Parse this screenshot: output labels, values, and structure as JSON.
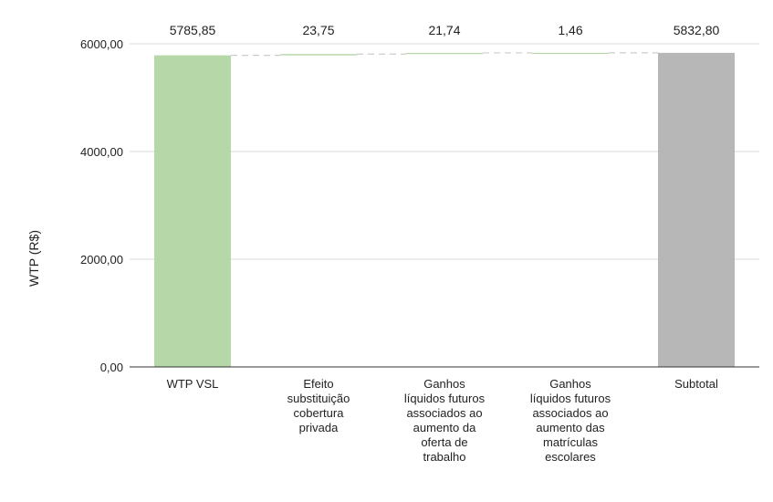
{
  "chart_data": {
    "type": "bar",
    "subtype": "waterfall",
    "ylabel": "WTP (R$)",
    "xlabel": "",
    "ylim": [
      0,
      6000
    ],
    "yticks": [
      0,
      2000,
      4000,
      6000
    ],
    "ytick_labels": [
      "0,00",
      "2000,00",
      "4000,00",
      "6000,00"
    ],
    "grid": true,
    "legend": "none",
    "categories": [
      [
        "WTP VSL"
      ],
      [
        "Efeito",
        "substituição",
        "cobertura",
        "privada"
      ],
      [
        "Ganhos",
        "líquidos futuros",
        "associados ao",
        "aumento da",
        "oferta de",
        "trabalho"
      ],
      [
        "Ganhos",
        "líquidos futuros",
        "associados ao",
        "aumento das",
        "matrículas",
        "escolares"
      ],
      [
        "Subtotal"
      ]
    ],
    "values": [
      5785.85,
      23.75,
      21.74,
      1.46,
      5832.8
    ],
    "bar_kind": [
      "total",
      "increase",
      "increase",
      "increase",
      "total"
    ],
    "value_labels": [
      "5785,85",
      "23,75",
      "21,74",
      "1,46",
      "5832,80"
    ],
    "colors": {
      "start": "#b6d7a8",
      "increase": "#b6d7a8",
      "total": "#b7b7b7",
      "connector": "#cccccc",
      "grid": "#d9d9d9",
      "axis": "#333333"
    }
  }
}
